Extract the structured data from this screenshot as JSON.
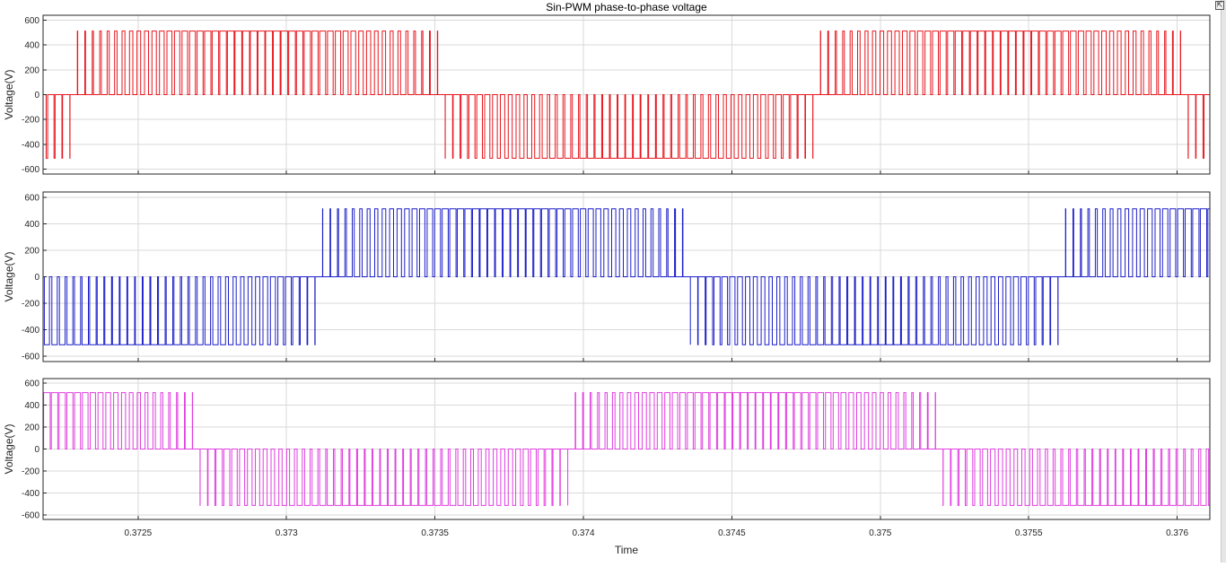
{
  "chart_data": {
    "type": "line",
    "title": "Sin-PWM phase-to-phase voltage",
    "xlabel": "Time",
    "xlim": [
      0.37218,
      0.37611
    ],
    "x_ticks": [
      0.3725,
      0.373,
      0.3735,
      0.374,
      0.3745,
      0.375,
      0.3755,
      0.376
    ],
    "x_tick_labels": [
      "0.3725",
      "0.373",
      "0.3735",
      "0.374",
      "0.3745",
      "0.375",
      "0.3755",
      "0.376"
    ],
    "grid": true,
    "subplots": [
      {
        "ylabel": "Voltage(V)",
        "ylim": [
          -640,
          640
        ],
        "y_ticks": [
          -600,
          -400,
          -200,
          0,
          200,
          400,
          600
        ],
        "y_tick_labels": [
          "-600",
          "-400",
          "-200",
          "0",
          "200",
          "400",
          "600"
        ],
        "color": "#e8171f",
        "amplitude": 513,
        "zero_crossings": [
          0.37228,
          0.37353,
          0.37478,
          0.37603
        ],
        "first_half_cycle_sign": -1
      },
      {
        "ylabel": "Voltage(V)",
        "ylim": [
          -640,
          640
        ],
        "y_ticks": [
          -600,
          -400,
          -200,
          0,
          200,
          400,
          600
        ],
        "y_tick_labels": [
          "-600",
          "-400",
          "-200",
          "0",
          "200",
          "400",
          "600"
        ],
        "color": "#1d1fc8",
        "amplitude": 513,
        "zero_crossings": [
          0.37311,
          0.37436,
          0.37561
        ],
        "first_half_cycle_sign": -1
      },
      {
        "ylabel": "Voltage(V)",
        "ylim": [
          -640,
          640
        ],
        "y_ticks": [
          -600,
          -400,
          -200,
          0,
          200,
          400,
          600
        ],
        "y_tick_labels": [
          "-600",
          "-400",
          "-200",
          "0",
          "200",
          "400",
          "600"
        ],
        "color": "#e03ee0",
        "amplitude": 513,
        "zero_crossings": [
          0.3727,
          0.37395,
          0.3752
        ],
        "first_half_cycle_sign": 1
      }
    ],
    "carrier_period": 2.58e-05
  },
  "window": {
    "corner_button_glyph": "⇱"
  }
}
